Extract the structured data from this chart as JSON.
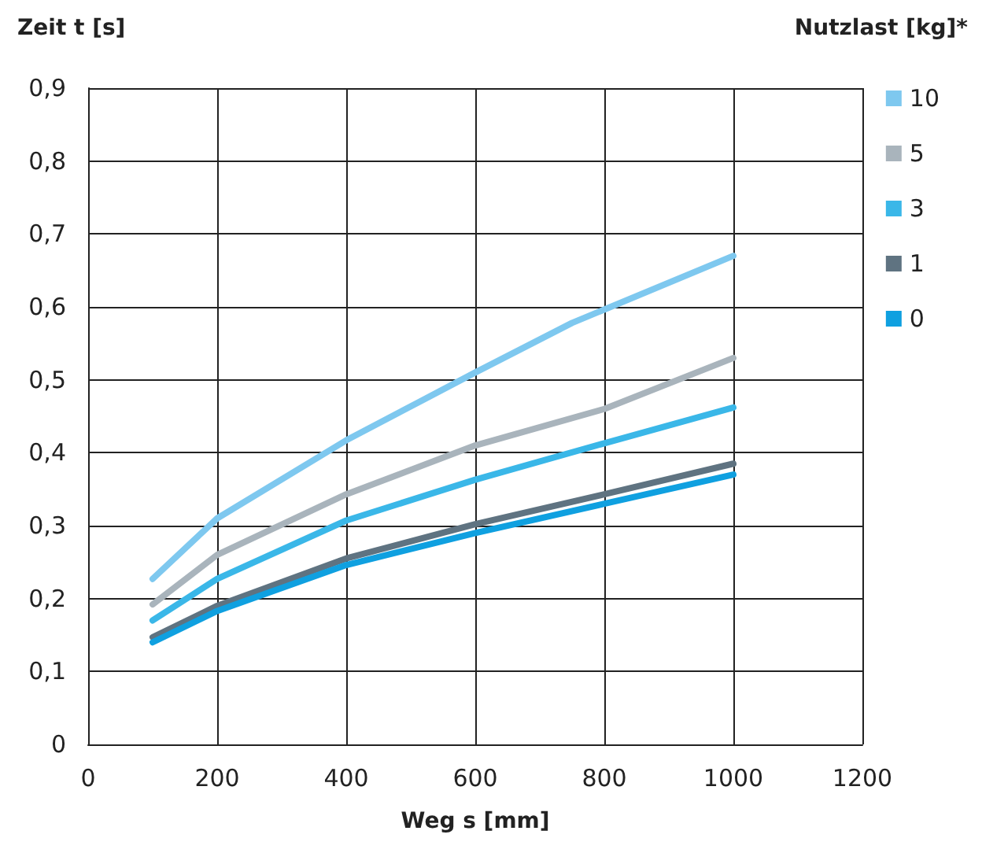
{
  "chart_data": {
    "type": "line",
    "ylabel": "Zeit t [s]",
    "xlabel": "Weg s [mm]",
    "legend_title": "Nutzlast [kg]*",
    "x": [
      100,
      200,
      400,
      600,
      800,
      1000
    ],
    "series": [
      {
        "name": "10",
        "color": "#7ec8ef",
        "x": [
          100,
          200,
          400,
          600,
          750,
          1000
        ],
        "values": [
          0.227,
          0.31,
          0.417,
          0.51,
          0.578,
          0.67
        ]
      },
      {
        "name": "5",
        "color": "#a9b4bc",
        "values": [
          0.192,
          0.26,
          0.343,
          0.41,
          0.46,
          0.53
        ]
      },
      {
        "name": "3",
        "color": "#3ab7e8",
        "values": [
          0.17,
          0.227,
          0.307,
          0.363,
          0.413,
          0.462
        ]
      },
      {
        "name": "1",
        "color": "#5f7381",
        "values": [
          0.147,
          0.19,
          0.255,
          0.302,
          0.343,
          0.385
        ]
      },
      {
        "name": "0",
        "color": "#0fa0e0",
        "values": [
          0.14,
          0.183,
          0.246,
          0.29,
          0.33,
          0.37
        ]
      }
    ],
    "xlim": [
      0,
      1200
    ],
    "xticks": [
      0,
      200,
      400,
      600,
      800,
      1000,
      1200
    ],
    "ylim": [
      0,
      0.9
    ],
    "yticks": [
      0,
      {
        "value": 0.1,
        "label": "0,1"
      },
      {
        "value": 0.2,
        "label": "0,2"
      },
      {
        "value": 0.3,
        "label": "0,3"
      },
      {
        "value": 0.4,
        "label": "0,4"
      },
      {
        "value": 0.5,
        "label": "0,5"
      },
      {
        "value": 0.6,
        "label": "0,6"
      },
      {
        "value": 0.7,
        "label": "0,7"
      },
      {
        "value": 0.8,
        "label": "0,8"
      },
      {
        "value": 0.9,
        "label": "0,9"
      }
    ],
    "grid": true,
    "legend": "right",
    "marker": "none",
    "line_style": "solid"
  }
}
